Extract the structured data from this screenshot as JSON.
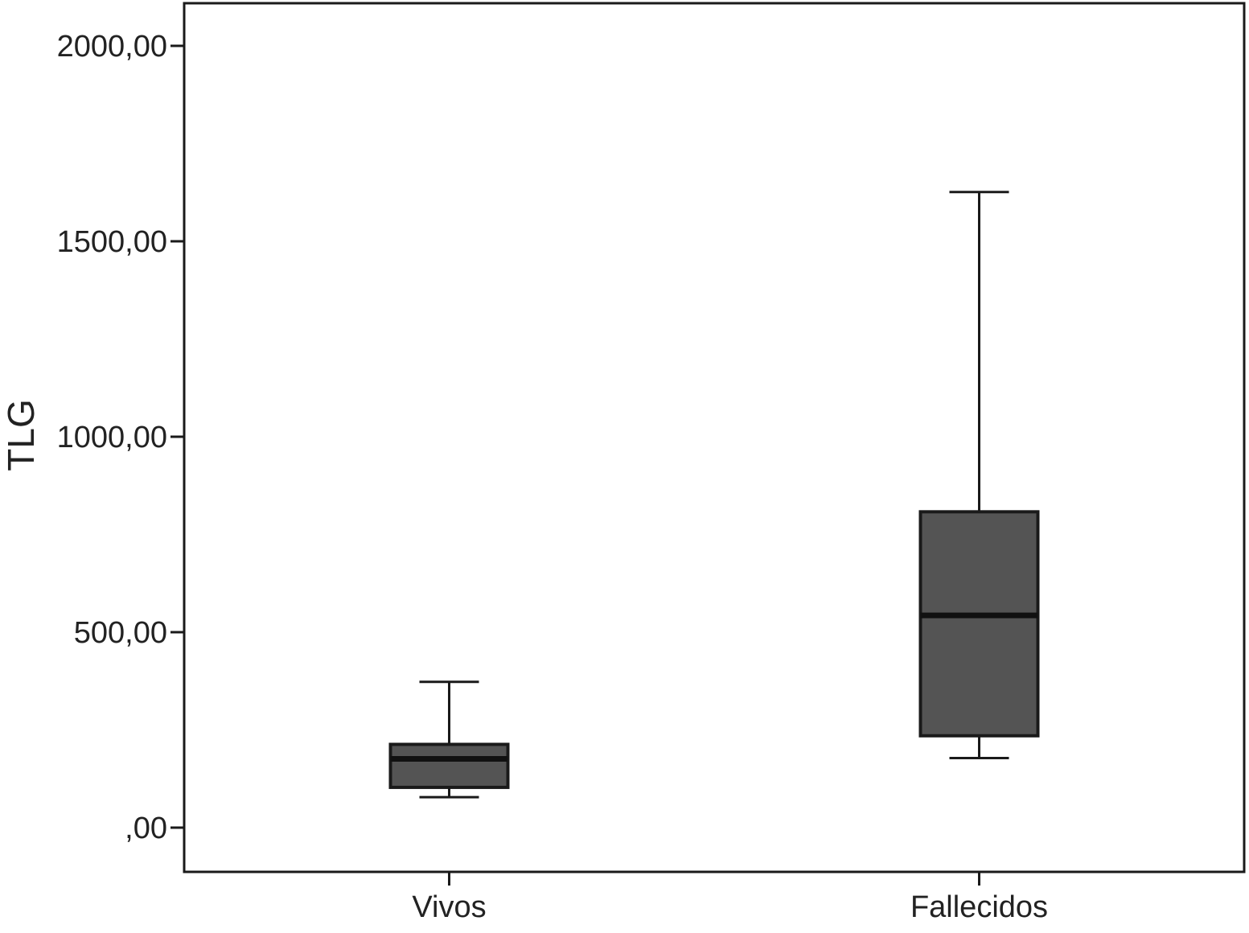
{
  "chart_data": {
    "type": "boxplot",
    "title": "",
    "xlabel": "",
    "ylabel": "TLG",
    "ylim": [
      -110,
      2110
    ],
    "yticks": [
      {
        "value": 0,
        "label": ",00"
      },
      {
        "value": 500,
        "label": "500,00"
      },
      {
        "value": 1000,
        "label": "1000,00"
      },
      {
        "value": 1500,
        "label": "1500,00"
      },
      {
        "value": 2000,
        "label": "2000,00"
      }
    ],
    "categories": [
      "Vivos",
      "Fallecidos"
    ],
    "boxes": [
      {
        "category": "Vivos",
        "min": 78,
        "q1": 103,
        "median": 176,
        "q3": 213,
        "max": 373
      },
      {
        "category": "Fallecidos",
        "min": 178,
        "q1": 235,
        "median": 543,
        "q3": 808,
        "max": 1626
      }
    ],
    "grid": false,
    "colors": {
      "box_fill": "#545454",
      "stroke": "#1a1a1a",
      "median": "#111111"
    }
  }
}
